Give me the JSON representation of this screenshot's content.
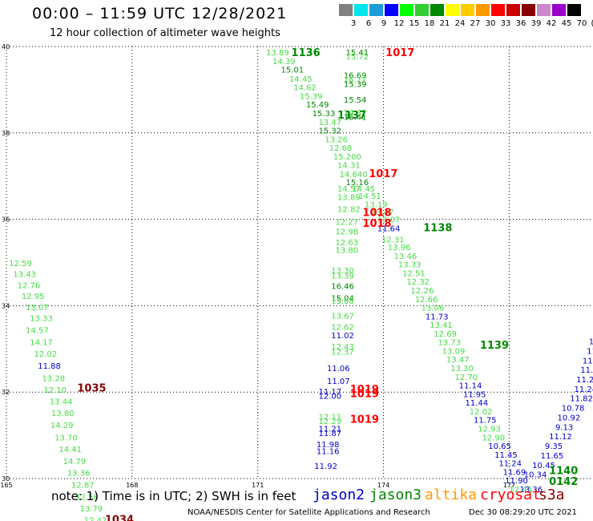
{
  "header": {
    "title": "00:00 – 11:59 UTC 12/28/2021",
    "subtitle": "12 hour collection of altimeter wave heights"
  },
  "colorbar": {
    "labels": [
      "3",
      "6",
      "9",
      "12",
      "15",
      "18",
      "21",
      "24",
      "27",
      "30",
      "33",
      "36",
      "39",
      "42",
      "45",
      "70",
      "(ft)"
    ],
    "colors": [
      "#808080",
      "#00e5ee",
      "#1c9bd8",
      "#0000ff",
      "#00ff00",
      "#33cc33",
      "#008800",
      "#ffff00",
      "#ffcc00",
      "#ff9900",
      "#ff0000",
      "#cc0000",
      "#880000",
      "#cc88cc",
      "#9900cc",
      "#000000"
    ]
  },
  "footer": {
    "note": "note: 1) Time is in UTC; 2) SWH is in feet",
    "satellites": [
      {
        "name": "jason2",
        "color": "#0000cc"
      },
      {
        "name": "jason3",
        "color": "#008800"
      },
      {
        "name": "altika",
        "color": "#ff9900"
      },
      {
        "name": "cryosat",
        "color": "#ff0000"
      },
      {
        "name": "s3a",
        "color": "#880000"
      }
    ],
    "credit": "NOAA/NESDIS Center for Satellite Applications and Research",
    "timestamp": "Dec 30 08:29:20 UTC 2021"
  },
  "chart_data": {
    "type": "scatter",
    "xlim": [
      165,
      179
    ],
    "ylim": [
      30,
      40
    ],
    "x_ticks": [
      "165",
      "168",
      "171",
      "174",
      "177"
    ],
    "y_ticks": [
      "40",
      "38",
      "36",
      "34",
      "32",
      "30"
    ],
    "grid": true,
    "colors": {
      "light": "#44dd44",
      "green": "#008800",
      "blue": "#0000cc",
      "red": "#ff0000",
      "maroon": "#880000"
    },
    "points": [
      {
        "lon": 165.06,
        "lat": 34.99,
        "text": "12.59",
        "c": "light"
      },
      {
        "lon": 165.16,
        "lat": 34.74,
        "text": "13.43",
        "c": "light"
      },
      {
        "lon": 165.26,
        "lat": 34.48,
        "text": "12.76",
        "c": "light"
      },
      {
        "lon": 165.36,
        "lat": 34.23,
        "text": "12.95",
        "c": "light"
      },
      {
        "lon": 165.46,
        "lat": 33.97,
        "text": "13.07",
        "c": "light"
      },
      {
        "lon": 165.56,
        "lat": 33.72,
        "text": "13.33",
        "c": "light"
      },
      {
        "lon": 165.46,
        "lat": 33.44,
        "text": "14.57",
        "c": "light"
      },
      {
        "lon": 165.56,
        "lat": 33.16,
        "text": "14.17",
        "c": "light"
      },
      {
        "lon": 165.66,
        "lat": 32.89,
        "text": "12.02",
        "c": "light"
      },
      {
        "lon": 165.75,
        "lat": 32.62,
        "text": "11.88",
        "c": "blue"
      },
      {
        "lon": 165.85,
        "lat": 32.33,
        "text": "13.28",
        "c": "light"
      },
      {
        "lon": 165.89,
        "lat": 32.06,
        "text": "12.10",
        "c": "light"
      },
      {
        "lon": 166.03,
        "lat": 31.79,
        "text": "13.44",
        "c": "light"
      },
      {
        "lon": 166.07,
        "lat": 31.52,
        "text": "13.80",
        "c": "light"
      },
      {
        "lon": 166.05,
        "lat": 31.24,
        "text": "14.29",
        "c": "light"
      },
      {
        "lon": 166.15,
        "lat": 30.96,
        "text": "13.70",
        "c": "light"
      },
      {
        "lon": 166.25,
        "lat": 30.69,
        "text": "14.41",
        "c": "light"
      },
      {
        "lon": 166.35,
        "lat": 30.41,
        "text": "14.79",
        "c": "light"
      },
      {
        "lon": 166.45,
        "lat": 30.14,
        "text": "13.36",
        "c": "light"
      },
      {
        "lon": 166.55,
        "lat": 29.86,
        "text": "12.87",
        "c": "light"
      },
      {
        "lon": 166.65,
        "lat": 29.58,
        "text": "12.58",
        "c": "light"
      },
      {
        "lon": 166.75,
        "lat": 29.31,
        "text": "13.79",
        "c": "light"
      },
      {
        "lon": 166.85,
        "lat": 29.04,
        "text": "12.42",
        "c": "light"
      },
      {
        "lon": 166.69,
        "lat": 32.09,
        "text": "1035",
        "c": "maroon",
        "id": true
      },
      {
        "lon": 167.35,
        "lat": 29.04,
        "text": "1034",
        "c": "maroon",
        "id": true
      },
      {
        "lon": 171.2,
        "lat": 39.87,
        "text": "13.89",
        "c": "light"
      },
      {
        "lon": 171.35,
        "lat": 39.67,
        "text": "14.39",
        "c": "light"
      },
      {
        "lon": 171.55,
        "lat": 39.47,
        "text": "15.01",
        "c": "green"
      },
      {
        "lon": 171.75,
        "lat": 39.26,
        "text": "14.45",
        "c": "light"
      },
      {
        "lon": 171.85,
        "lat": 39.06,
        "text": "14.62",
        "c": "light"
      },
      {
        "lon": 172.0,
        "lat": 38.86,
        "text": "15.39",
        "c": "light"
      },
      {
        "lon": 172.15,
        "lat": 38.66,
        "text": "15.49",
        "c": "green"
      },
      {
        "lon": 172.3,
        "lat": 38.46,
        "text": "15.33",
        "c": "green"
      },
      {
        "lon": 172.45,
        "lat": 38.26,
        "text": "13.47",
        "c": "light"
      },
      {
        "lon": 172.45,
        "lat": 38.06,
        "text": "15.32",
        "c": "green"
      },
      {
        "lon": 172.6,
        "lat": 37.86,
        "text": "13.26",
        "c": "light"
      },
      {
        "lon": 172.7,
        "lat": 37.66,
        "text": "12.68",
        "c": "light"
      },
      {
        "lon": 172.8,
        "lat": 37.46,
        "text": "15.200",
        "c": "light"
      },
      {
        "lon": 172.9,
        "lat": 37.26,
        "text": "14.31",
        "c": "light"
      },
      {
        "lon": 172.95,
        "lat": 37.05,
        "text": "14.640",
        "c": "light"
      },
      {
        "lon": 173.1,
        "lat": 36.86,
        "text": "15.16",
        "c": "green"
      },
      {
        "lon": 172.9,
        "lat": 36.72,
        "text": "14.57",
        "c": "light"
      },
      {
        "lon": 173.25,
        "lat": 36.72,
        "text": "14.45",
        "c": "light"
      },
      {
        "lon": 172.9,
        "lat": 36.52,
        "text": "13.89",
        "c": "light"
      },
      {
        "lon": 173.4,
        "lat": 36.55,
        "text": "14.51",
        "c": "light"
      },
      {
        "lon": 173.55,
        "lat": 36.35,
        "text": "13.19",
        "c": "light"
      },
      {
        "lon": 172.9,
        "lat": 36.24,
        "text": "12.82",
        "c": "light"
      },
      {
        "lon": 173.7,
        "lat": 36.18,
        "text": "13.47",
        "c": "light"
      },
      {
        "lon": 172.85,
        "lat": 35.95,
        "text": "12.27",
        "c": "light"
      },
      {
        "lon": 173.85,
        "lat": 36.0,
        "text": "13.07",
        "c": "light"
      },
      {
        "lon": 172.85,
        "lat": 35.72,
        "text": "12.98",
        "c": "light"
      },
      {
        "lon": 173.85,
        "lat": 35.8,
        "text": "11.64",
        "c": "blue"
      },
      {
        "lon": 173.95,
        "lat": 35.54,
        "text": "12.31",
        "c": "light"
      },
      {
        "lon": 172.85,
        "lat": 35.47,
        "text": "12.63",
        "c": "light"
      },
      {
        "lon": 172.85,
        "lat": 35.3,
        "text": "13.80",
        "c": "light"
      },
      {
        "lon": 174.1,
        "lat": 35.36,
        "text": "13.96",
        "c": "light"
      },
      {
        "lon": 174.25,
        "lat": 35.16,
        "text": "13.46",
        "c": "light"
      },
      {
        "lon": 174.35,
        "lat": 34.96,
        "text": "13.33",
        "c": "light"
      },
      {
        "lon": 172.75,
        "lat": 34.82,
        "text": "13.30",
        "c": "light"
      },
      {
        "lon": 174.45,
        "lat": 34.76,
        "text": "12.51",
        "c": "light"
      },
      {
        "lon": 172.75,
        "lat": 34.7,
        "text": "13.39",
        "c": "light"
      },
      {
        "lon": 174.55,
        "lat": 34.56,
        "text": "12.32",
        "c": "light"
      },
      {
        "lon": 172.75,
        "lat": 34.46,
        "text": "16.46",
        "c": "green"
      },
      {
        "lon": 174.65,
        "lat": 34.36,
        "text": "12.26",
        "c": "light"
      },
      {
        "lon": 172.75,
        "lat": 34.18,
        "text": "15.04",
        "c": "green"
      },
      {
        "lon": 172.75,
        "lat": 34.12,
        "text": "15.08",
        "c": "light"
      },
      {
        "lon": 174.75,
        "lat": 34.16,
        "text": "12.66",
        "c": "light"
      },
      {
        "lon": 174.9,
        "lat": 33.96,
        "text": "13.06",
        "c": "light"
      },
      {
        "lon": 172.75,
        "lat": 33.78,
        "text": "13.67",
        "c": "light"
      },
      {
        "lon": 175.0,
        "lat": 33.76,
        "text": "11.73",
        "c": "blue"
      },
      {
        "lon": 175.1,
        "lat": 33.56,
        "text": "13.41",
        "c": "light"
      },
      {
        "lon": 172.75,
        "lat": 33.52,
        "text": "12.62",
        "c": "light"
      },
      {
        "lon": 175.2,
        "lat": 33.36,
        "text": "12.69",
        "c": "light"
      },
      {
        "lon": 172.75,
        "lat": 33.32,
        "text": "11.02",
        "c": "blue"
      },
      {
        "lon": 175.3,
        "lat": 33.16,
        "text": "13.73",
        "c": "light"
      },
      {
        "lon": 172.75,
        "lat": 33.06,
        "text": "12.43",
        "c": "light"
      },
      {
        "lon": 172.75,
        "lat": 32.94,
        "text": "12.37",
        "c": "light"
      },
      {
        "lon": 175.4,
        "lat": 32.96,
        "text": "13.09",
        "c": "light"
      },
      {
        "lon": 175.5,
        "lat": 32.76,
        "text": "13.47",
        "c": "light"
      },
      {
        "lon": 175.6,
        "lat": 32.56,
        "text": "13.30",
        "c": "light"
      },
      {
        "lon": 172.65,
        "lat": 32.56,
        "text": "11.06",
        "c": "blue"
      },
      {
        "lon": 175.7,
        "lat": 32.36,
        "text": "12.70",
        "c": "light"
      },
      {
        "lon": 172.65,
        "lat": 32.26,
        "text": "11.07",
        "c": "blue"
      },
      {
        "lon": 175.8,
        "lat": 32.16,
        "text": "11.14",
        "c": "blue"
      },
      {
        "lon": 172.45,
        "lat": 32.02,
        "text": "11.17",
        "c": "blue"
      },
      {
        "lon": 172.45,
        "lat": 31.92,
        "text": "12.00",
        "c": "blue"
      },
      {
        "lon": 175.9,
        "lat": 31.96,
        "text": "11.95",
        "c": "blue"
      },
      {
        "lon": 175.95,
        "lat": 31.76,
        "text": "11.44",
        "c": "blue"
      },
      {
        "lon": 176.05,
        "lat": 31.56,
        "text": "12.02",
        "c": "light"
      },
      {
        "lon": 172.45,
        "lat": 31.44,
        "text": "12.11",
        "c": "light"
      },
      {
        "lon": 172.45,
        "lat": 31.34,
        "text": "12.29",
        "c": "light"
      },
      {
        "lon": 176.15,
        "lat": 31.36,
        "text": "11.75",
        "c": "blue"
      },
      {
        "lon": 172.45,
        "lat": 31.16,
        "text": "11.21",
        "c": "blue"
      },
      {
        "lon": 176.25,
        "lat": 31.16,
        "text": "12.93",
        "c": "light"
      },
      {
        "lon": 172.45,
        "lat": 31.06,
        "text": "11.87",
        "c": "blue"
      },
      {
        "lon": 176.35,
        "lat": 30.96,
        "text": "12.90",
        "c": "light"
      },
      {
        "lon": 172.4,
        "lat": 30.8,
        "text": "11.98",
        "c": "blue"
      },
      {
        "lon": 176.5,
        "lat": 30.76,
        "text": "10.65",
        "c": "blue"
      },
      {
        "lon": 172.4,
        "lat": 30.64,
        "text": "11.16",
        "c": "blue"
      },
      {
        "lon": 176.65,
        "lat": 30.56,
        "text": "11.45",
        "c": "blue"
      },
      {
        "lon": 176.75,
        "lat": 30.36,
        "text": "11.24",
        "c": "blue"
      },
      {
        "lon": 172.35,
        "lat": 30.3,
        "text": "11.92",
        "c": "blue"
      },
      {
        "lon": 176.85,
        "lat": 30.16,
        "text": "11.69",
        "c": "blue"
      },
      {
        "lon": 176.9,
        "lat": 29.96,
        "text": "11.90",
        "c": "blue"
      },
      {
        "lon": 177.0,
        "lat": 29.76,
        "text": "12.43",
        "c": "light"
      },
      {
        "lon": 177.25,
        "lat": 29.76,
        "text": "13.36",
        "c": "blue"
      },
      {
        "lon": 173.1,
        "lat": 39.87,
        "text": "15.41",
        "c": "green"
      },
      {
        "lon": 173.1,
        "lat": 39.78,
        "text": "15.72",
        "c": "light"
      },
      {
        "lon": 173.05,
        "lat": 39.34,
        "text": "16.69",
        "c": "green"
      },
      {
        "lon": 173.05,
        "lat": 39.24,
        "text": "16.77",
        "c": "light"
      },
      {
        "lon": 173.05,
        "lat": 39.14,
        "text": "15.39",
        "c": "green"
      },
      {
        "lon": 173.05,
        "lat": 38.78,
        "text": "15.54",
        "c": "green"
      },
      {
        "lon": 173.05,
        "lat": 38.48,
        "text": "14.37",
        "c": "light"
      },
      {
        "lon": 173.05,
        "lat": 38.38,
        "text": "15.41",
        "c": "green"
      },
      {
        "lon": 177.35,
        "lat": 30.1,
        "text": "10.34",
        "c": "blue"
      },
      {
        "lon": 177.55,
        "lat": 30.32,
        "text": "10.45",
        "c": "blue"
      },
      {
        "lon": 177.75,
        "lat": 30.54,
        "text": "11.65",
        "c": "blue"
      },
      {
        "lon": 177.85,
        "lat": 30.76,
        "text": "9.35",
        "c": "blue"
      },
      {
        "lon": 177.95,
        "lat": 30.98,
        "text": "11.12",
        "c": "blue"
      },
      {
        "lon": 178.1,
        "lat": 31.2,
        "text": "9.13",
        "c": "blue"
      },
      {
        "lon": 178.15,
        "lat": 31.42,
        "text": "10.92",
        "c": "blue"
      },
      {
        "lon": 178.25,
        "lat": 31.64,
        "text": "10.78",
        "c": "blue"
      },
      {
        "lon": 178.45,
        "lat": 31.86,
        "text": "11.82",
        "c": "blue"
      },
      {
        "lon": 178.55,
        "lat": 32.08,
        "text": "11.24",
        "c": "blue"
      },
      {
        "lon": 178.6,
        "lat": 32.3,
        "text": "11.25",
        "c": "blue"
      },
      {
        "lon": 178.7,
        "lat": 32.52,
        "text": "11.63",
        "c": "blue"
      },
      {
        "lon": 178.75,
        "lat": 32.74,
        "text": "11.2",
        "c": "blue"
      },
      {
        "lon": 178.85,
        "lat": 32.96,
        "text": "11.",
        "c": "blue"
      },
      {
        "lon": 178.9,
        "lat": 33.18,
        "text": "11",
        "c": "blue"
      },
      {
        "lon": 171.8,
        "lat": 39.85,
        "text": "1136",
        "c": "green",
        "id": true
      },
      {
        "lon": 174.05,
        "lat": 39.85,
        "text": "1017",
        "c": "red",
        "id": true
      },
      {
        "lon": 172.9,
        "lat": 38.4,
        "text": "1137",
        "c": "green",
        "id": true
      },
      {
        "lon": 173.65,
        "lat": 37.05,
        "text": "1017",
        "c": "red",
        "id": true
      },
      {
        "lon": 173.5,
        "lat": 36.15,
        "text": "1018",
        "c": "red",
        "id": true
      },
      {
        "lon": 173.5,
        "lat": 35.9,
        "text": "1018",
        "c": "red",
        "id": true
      },
      {
        "lon": 174.95,
        "lat": 35.8,
        "text": "1138",
        "c": "green",
        "id": true
      },
      {
        "lon": 176.3,
        "lat": 33.08,
        "text": "1139",
        "c": "green",
        "id": true
      },
      {
        "lon": 173.2,
        "lat": 32.06,
        "text": "1019",
        "c": "red",
        "id": true
      },
      {
        "lon": 173.2,
        "lat": 31.96,
        "text": "1019",
        "c": "red",
        "id": true
      },
      {
        "lon": 173.2,
        "lat": 31.36,
        "text": "1019",
        "c": "red",
        "id": true
      },
      {
        "lon": 177.95,
        "lat": 30.18,
        "text": "1140",
        "c": "green",
        "id": true
      },
      {
        "lon": 177.95,
        "lat": 29.93,
        "text": "0142",
        "c": "green",
        "id": true
      }
    ]
  }
}
